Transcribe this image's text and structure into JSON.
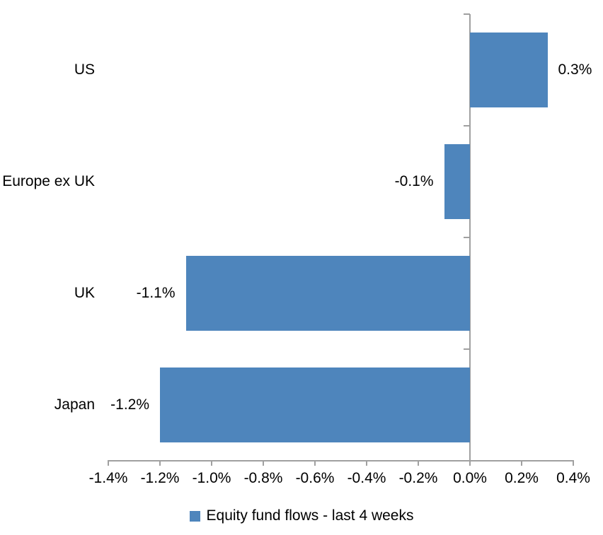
{
  "chart_data": {
    "type": "bar",
    "orientation": "horizontal",
    "title": "",
    "categories": [
      "US",
      "Europe ex UK",
      "UK",
      "Japan"
    ],
    "series": [
      {
        "name": "Equity fund flows - last 4 weeks",
        "values": [
          0.3,
          -0.1,
          -1.1,
          -1.2
        ],
        "data_labels": [
          "0.3%",
          "-0.1%",
          "-1.1%",
          "-1.2%"
        ]
      }
    ],
    "xlabel": "",
    "ylabel": "",
    "xlim": [
      -1.4,
      0.4
    ],
    "x_tick_values": [
      -1.4,
      -1.2,
      -1.0,
      -0.8,
      -0.6,
      -0.4,
      -0.2,
      0.0,
      0.2,
      0.4
    ],
    "x_tick_labels": [
      "-1.4%",
      "-1.2%",
      "-1.0%",
      "-0.8%",
      "-0.6%",
      "-0.4%",
      "-0.2%",
      "0.0%",
      "0.2%",
      "0.4%"
    ],
    "grid": false,
    "legend_position": "bottom",
    "legend_label": "Equity fund flows - last 4 weeks",
    "colors": {
      "bar": "#4E85BC",
      "axis": "#A0A0A0",
      "text": "#000000",
      "background": "#FFFFFF"
    }
  }
}
